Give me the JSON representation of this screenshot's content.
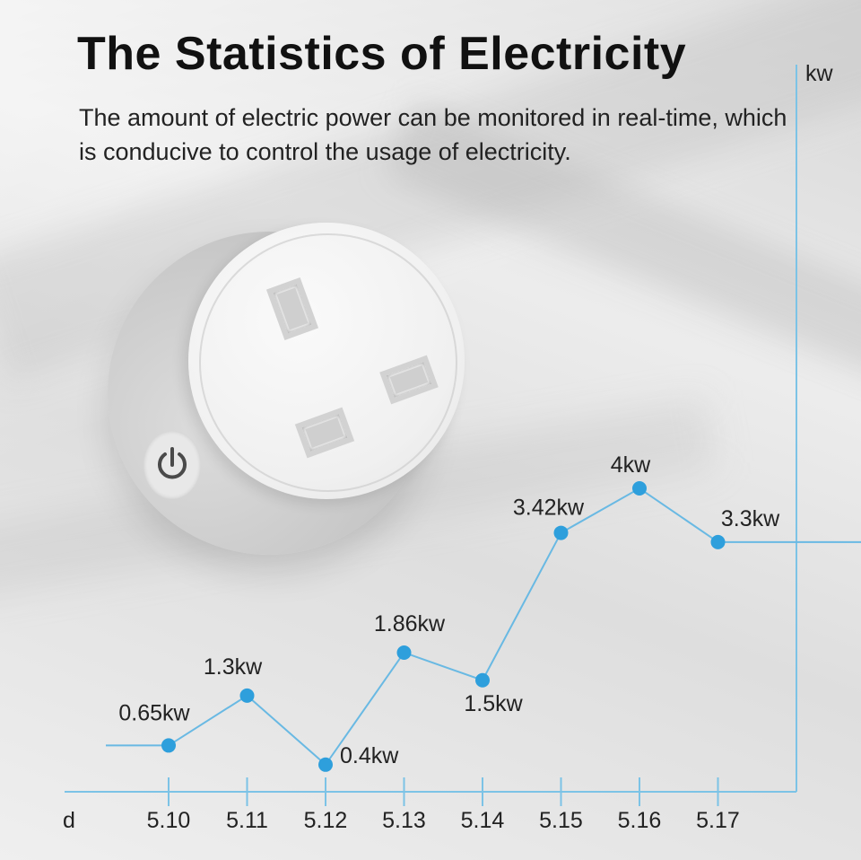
{
  "header": {
    "title": "The Statistics of Electricity",
    "subtitle": "The amount of electric power can be monitored in real-time, which is conducive to control the usage of electricity."
  },
  "chart_data": {
    "type": "line",
    "title": "",
    "xlabel": "d",
    "ylabel": "kw",
    "categories": [
      "5.10",
      "5.11",
      "5.12",
      "5.13",
      "5.14",
      "5.15",
      "5.16",
      "5.17"
    ],
    "values": [
      0.65,
      1.3,
      0.4,
      1.86,
      1.5,
      3.42,
      4,
      3.3
    ],
    "data_labels": [
      "0.65kw",
      "1.3kw",
      "0.4kw",
      "1.86kw",
      "1.5kw",
      "3.42kw",
      "4kw",
      "3.3kw"
    ],
    "ylim": [
      0,
      4.4
    ],
    "grid": false,
    "legend": "none",
    "line_color": "#69b9e3",
    "marker_color": "#2e9fdc",
    "axis_color": "#7cc3e6"
  }
}
